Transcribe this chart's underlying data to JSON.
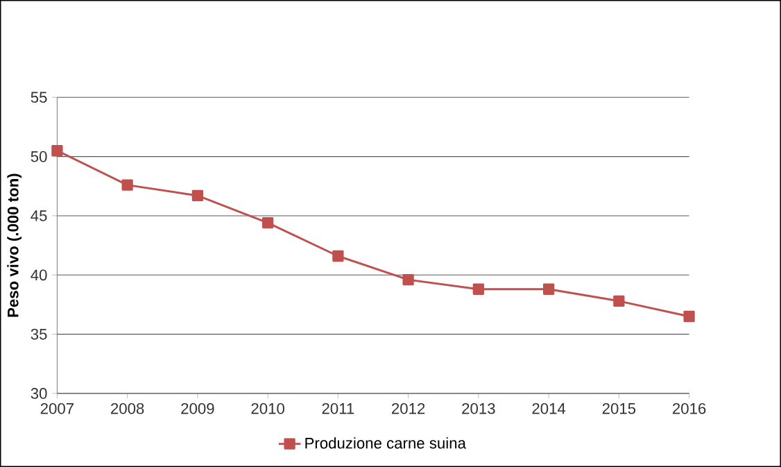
{
  "chart_data": {
    "type": "line",
    "ylabel": "Peso vivo (.000 ton)",
    "categories": [
      "2007",
      "2008",
      "2009",
      "2010",
      "2011",
      "2012",
      "2013",
      "2014",
      "2015",
      "2016"
    ],
    "series": [
      {
        "name": "Produzione carne suina",
        "color": "#c0504d",
        "values": [
          50.5,
          47.6,
          46.7,
          44.4,
          41.6,
          39.6,
          38.8,
          38.8,
          37.8,
          36.5
        ]
      }
    ],
    "ylim": [
      30,
      55
    ],
    "yticks": [
      30,
      35,
      40,
      45,
      50,
      55
    ],
    "grid": "y",
    "legend": "bottom",
    "marker": "square",
    "line_style": "solid"
  }
}
